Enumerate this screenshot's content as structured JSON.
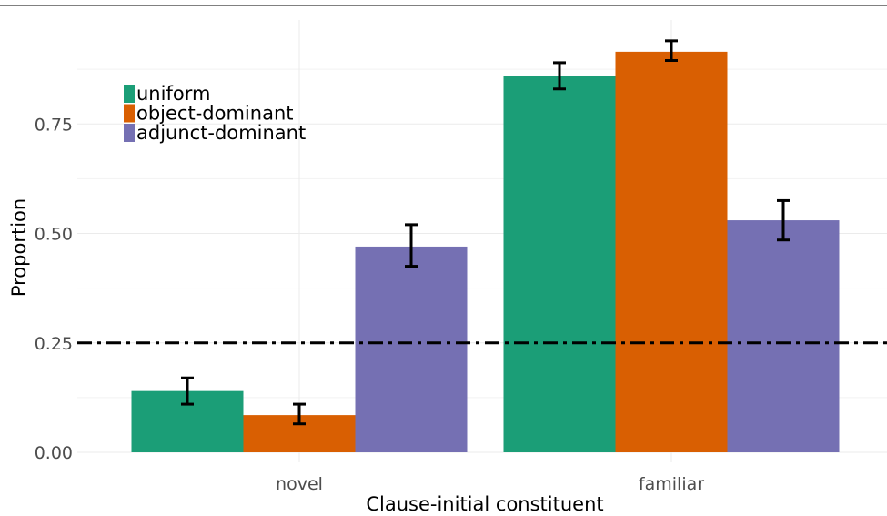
{
  "chart_data": {
    "type": "bar",
    "title": "",
    "xlabel": "Clause-initial constituent",
    "ylabel": "Proportion",
    "categories": [
      "novel",
      "familiar"
    ],
    "ylim": [
      -0.02,
      0.95
    ],
    "y_ticks": [
      0.0,
      0.25,
      0.5,
      0.75
    ],
    "y_tick_labels": [
      "0.00",
      "0.25",
      "0.50",
      "0.75"
    ],
    "grid": true,
    "legend_position": "top-left",
    "reference_line": {
      "y": 0.25,
      "style": "dash-dot",
      "color": "#000000"
    },
    "series": [
      {
        "name": "uniform",
        "color": "#1B9E77",
        "values": [
          0.14,
          0.86
        ],
        "error_low": [
          0.11,
          0.83
        ],
        "error_high": [
          0.17,
          0.89
        ]
      },
      {
        "name": "object-dominant",
        "color": "#D95F02",
        "values": [
          0.085,
          0.915
        ],
        "error_low": [
          0.065,
          0.895
        ],
        "error_high": [
          0.11,
          0.94
        ]
      },
      {
        "name": "adjunct-dominant",
        "color": "#7570B3",
        "values": [
          0.47,
          0.53
        ],
        "error_low": [
          0.425,
          0.485
        ],
        "error_high": [
          0.52,
          0.575
        ]
      }
    ]
  }
}
